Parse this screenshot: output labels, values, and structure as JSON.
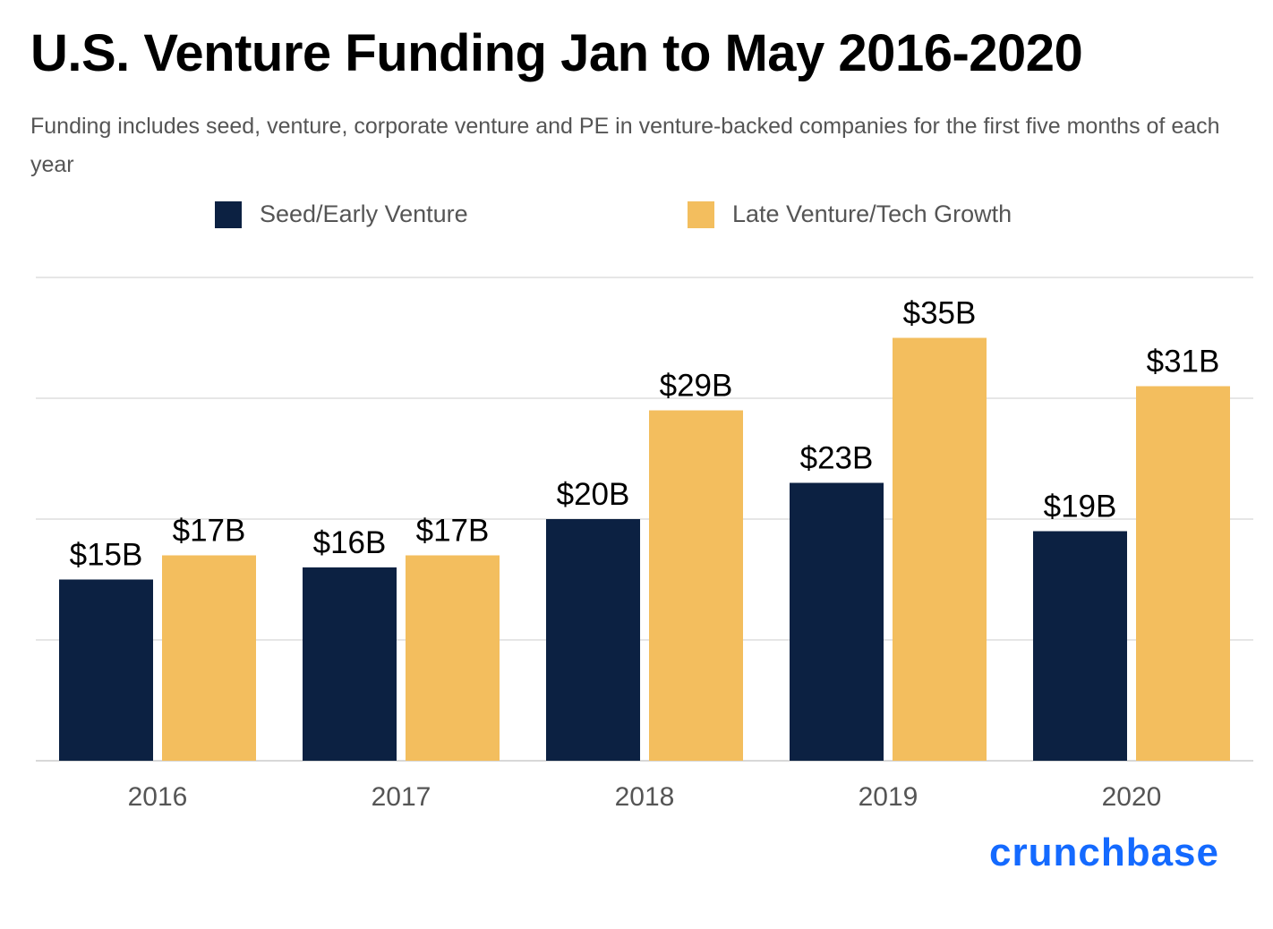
{
  "title": "U.S. Venture Funding Jan to May 2016-2020",
  "subtitle": "Funding includes seed, venture, corporate venture and PE in venture-backed companies for the first five months of each year",
  "logo": "crunchbase",
  "colors": {
    "seed": "#0c2142",
    "late": "#f3be5e",
    "logo": "#146aff",
    "grid": "#dddddd"
  },
  "chart_data": {
    "type": "bar",
    "title": "U.S. Venture Funding Jan to May 2016-2020",
    "categories": [
      "2016",
      "2017",
      "2018",
      "2019",
      "2020"
    ],
    "series": [
      {
        "name": "Seed/Early Venture",
        "values": [
          15,
          16,
          20,
          23,
          19
        ],
        "labels": [
          "$15B",
          "$16B",
          "$20B",
          "$23B",
          "$19B"
        ]
      },
      {
        "name": "Late Venture/Tech Growth",
        "values": [
          17,
          17,
          29,
          35,
          31
        ],
        "labels": [
          "$17B",
          "$17B",
          "$29B",
          "$35B",
          "$31B"
        ]
      }
    ],
    "unit": "$B",
    "ylim": [
      0,
      40
    ],
    "grid": true,
    "legend": "top"
  }
}
